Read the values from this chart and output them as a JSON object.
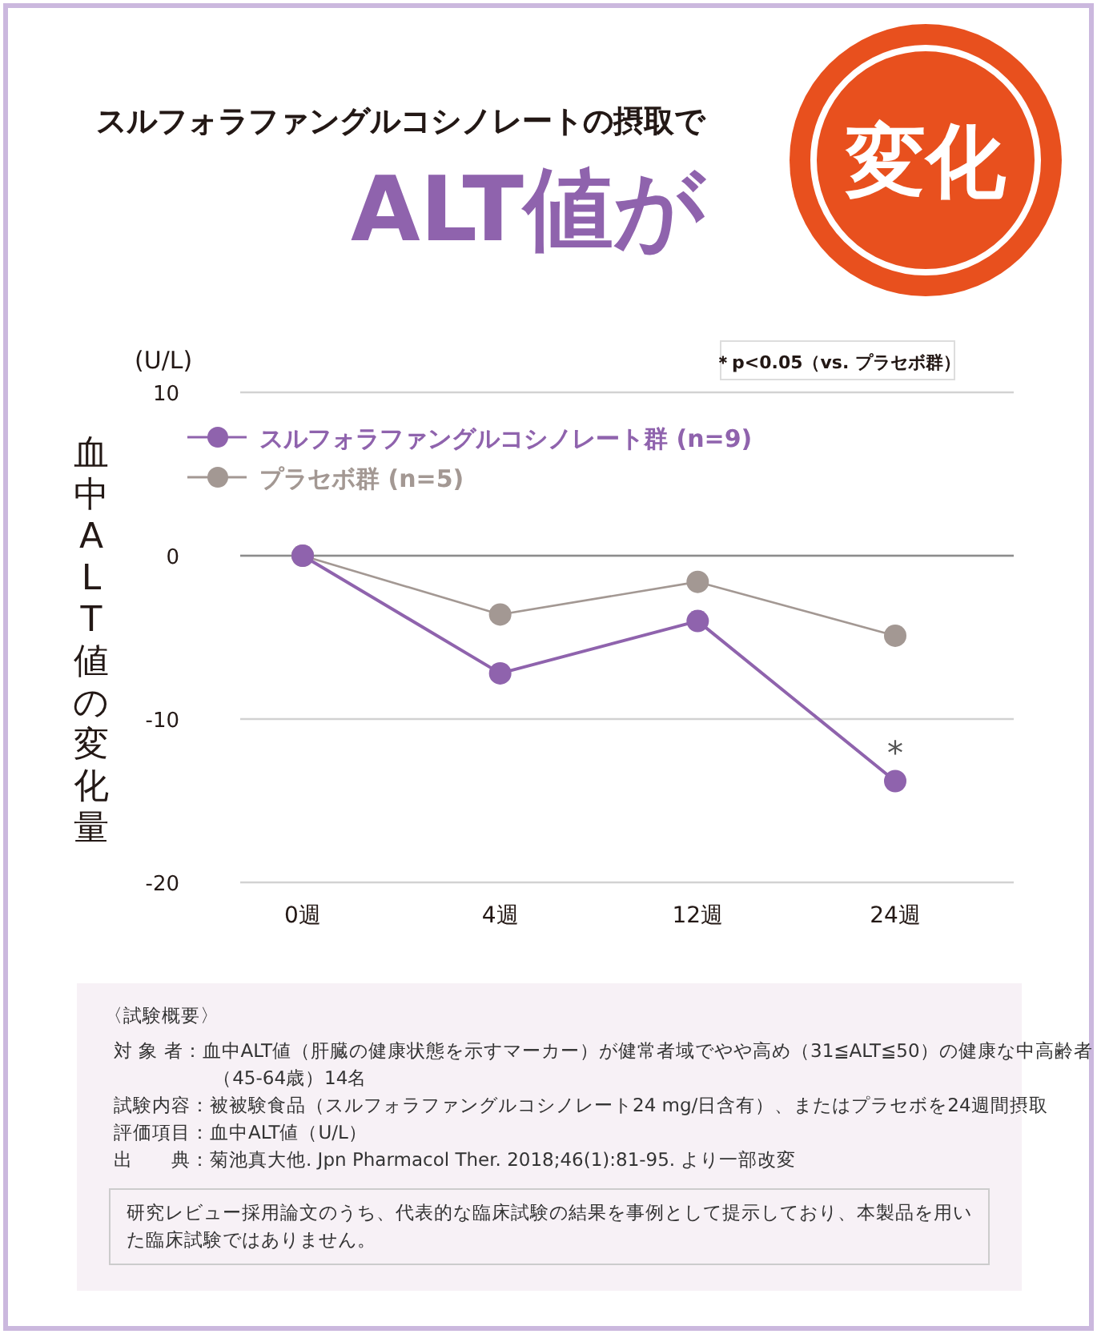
{
  "chart_data": {
    "type": "line",
    "title": "スルフォラファングルコシノレートの摂取で",
    "subtitle": "ALT値が",
    "ylabel": "血中ALT値の変化量",
    "categories": [
      "0週",
      "4週",
      "12週",
      "24週"
    ],
    "series": [
      {
        "name": "スルフォラファングルコシノレート群 (n=9)",
        "color": "#8f63ad",
        "values": [
          0,
          -7.2,
          -4.0,
          -13.8
        ]
      },
      {
        "name": "プラセボ群 (n=5)",
        "color": "#a39893",
        "values": [
          0,
          -3.6,
          -1.6,
          -4.9
        ]
      }
    ],
    "ylim": [
      -20,
      10
    ],
    "yticks": [
      -20,
      -10,
      0,
      10
    ],
    "grid": "y",
    "legend": "top left",
    "marker": "circle",
    "line_style": "solid",
    "ref_lines": [
      {
        "axis": "y",
        "value": 0,
        "color": "#8c8c8c"
      }
    ],
    "annotations": [
      "変化",
      "(U/L)",
      "＊p<0.05（vs. プラセボ群）",
      {
        "text": "*",
        "x": "24週",
        "y": -13.8
      },
      "〈試験概要〉",
      "対 象 者：血中ALT値（肝臓の健康状態を示すマーカー）が健常者域でやや高め（31≦ALT≦50）の健康な中高齢者（45-64歳）14名",
      "試験内容：被被験食品（スルフォラファングルコシノレート24 mg/日含有）、またはプラセボを24週間摂取",
      "評価項目：血中ALT値（U/L）",
      "出　　典：菊池真大他. Jpn Pharmacol Ther. 2018;46(1):81-95. より一部改変",
      "研究レビュー採用論文のうち、代表的な臨床試験の結果を事例として提示しており、本製品を用いた臨床試験ではありません。"
    ]
  }
}
